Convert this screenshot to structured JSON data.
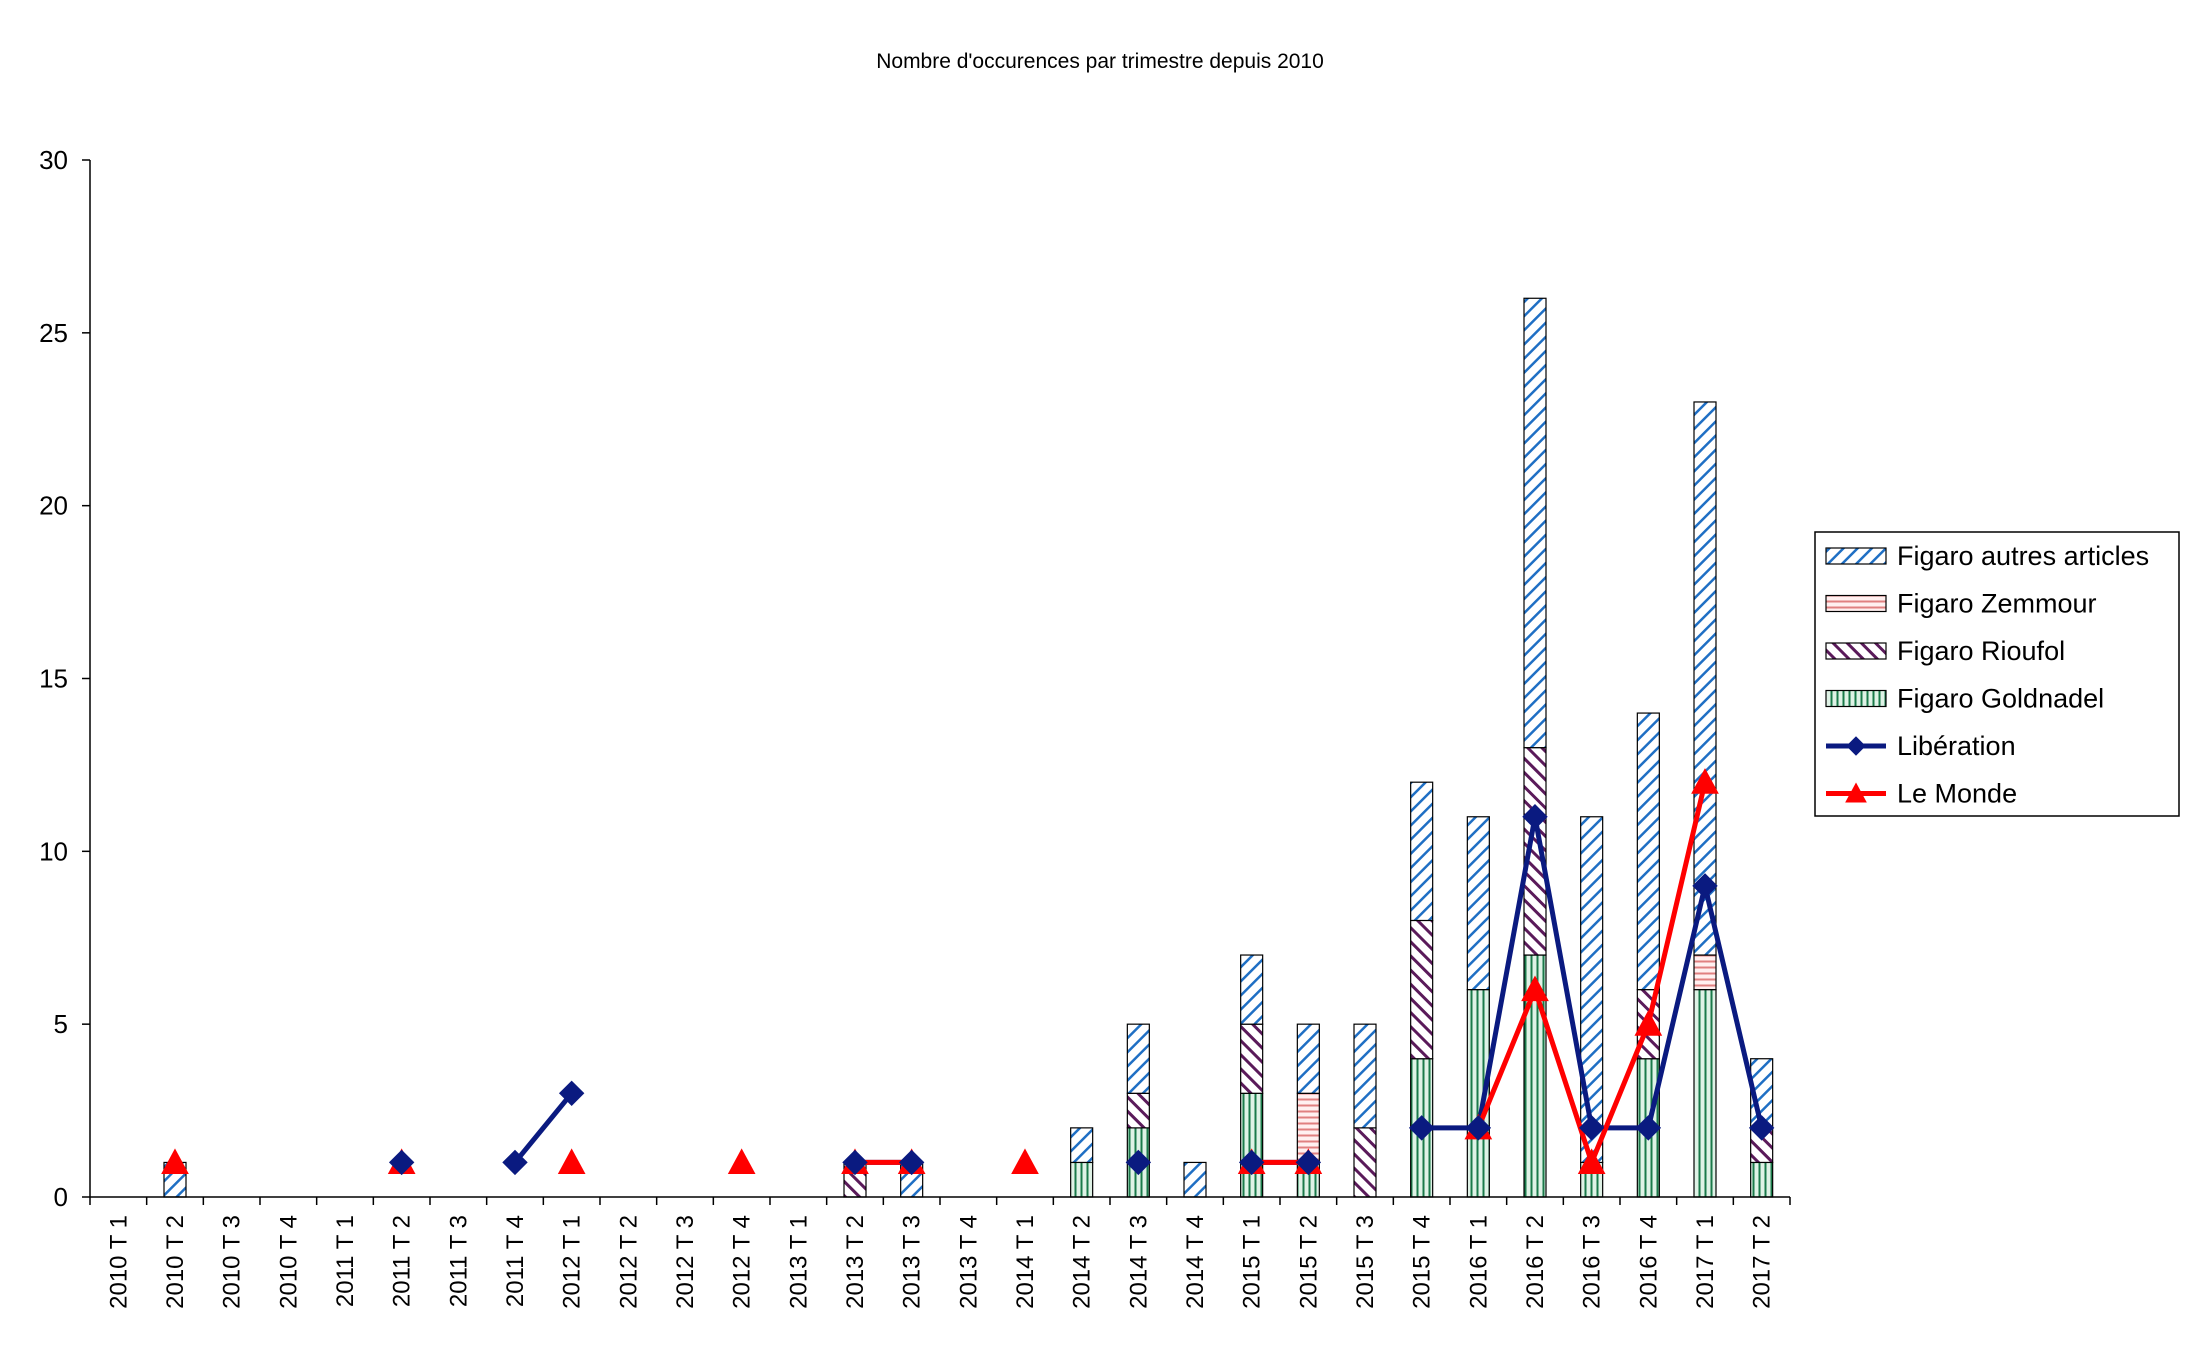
{
  "chart_data": {
    "type": "bar",
    "stacked": true,
    "title": "Nombre d'occurences par trimestre depuis 2010",
    "xlabel": "",
    "ylabel": "",
    "ylim": [
      0,
      30
    ],
    "yticks": [
      0,
      5,
      10,
      15,
      20,
      25,
      30
    ],
    "grid": false,
    "legend_position": "right",
    "categories": [
      "2010 T 1",
      "2010 T 2",
      "2010 T 3",
      "2010 T 4",
      "2011 T 1",
      "2011 T 2",
      "2011 T 3",
      "2011 T 4",
      "2012 T 1",
      "2012 T 2",
      "2012 T 3",
      "2012 T 4",
      "2013 T 1",
      "2013 T 2",
      "2013 T 3",
      "2013 T 4",
      "2014 T 1",
      "2014 T 2",
      "2014 T 3",
      "2014 T 4",
      "2015 T 1",
      "2015 T 2",
      "2015 T 3",
      "2015 T 4",
      "2016 T 1",
      "2016 T 2",
      "2016 T 3",
      "2016 T 4",
      "2017 T 1",
      "2017 T 2"
    ],
    "bar_series": [
      {
        "name": "Figaro Goldnadel",
        "pattern": "vertical",
        "color": "#1a7a4a",
        "fill": "#dff2e6",
        "values": [
          0,
          0,
          0,
          0,
          0,
          0,
          0,
          0,
          0,
          0,
          0,
          0,
          0,
          0,
          0,
          0,
          0,
          1,
          2,
          0,
          3,
          1,
          0,
          4,
          6,
          7,
          1,
          4,
          6,
          1
        ]
      },
      {
        "name": "Figaro Rioufol",
        "pattern": "backslash",
        "color": "#5a1a5a",
        "fill": "#ffffff",
        "values": [
          0,
          0,
          0,
          0,
          0,
          0,
          0,
          0,
          0,
          0,
          0,
          0,
          0,
          1,
          0,
          0,
          0,
          0,
          1,
          0,
          2,
          0,
          2,
          4,
          0,
          6,
          0,
          2,
          0,
          1
        ]
      },
      {
        "name": "Figaro Zemmour",
        "pattern": "horizontal",
        "color": "#e08080",
        "fill": "#fff0f0",
        "values": [
          0,
          0,
          0,
          0,
          0,
          0,
          0,
          0,
          0,
          0,
          0,
          0,
          0,
          0,
          0,
          0,
          0,
          0,
          0,
          0,
          0,
          2,
          0,
          0,
          0,
          0,
          0,
          0,
          1,
          0
        ]
      },
      {
        "name": "Figaro autres articles",
        "pattern": "slash",
        "color": "#1f6fc4",
        "fill": "#ffffff",
        "values": [
          0,
          1,
          0,
          0,
          0,
          0,
          0,
          0,
          0,
          0,
          0,
          0,
          0,
          0,
          1,
          0,
          0,
          1,
          2,
          1,
          2,
          2,
          3,
          4,
          5,
          13,
          10,
          8,
          16,
          2
        ]
      }
    ],
    "line_series": [
      {
        "name": "Libération",
        "color": "#0a1a80",
        "marker": "diamond",
        "values": [
          null,
          null,
          null,
          null,
          null,
          1,
          null,
          1,
          3,
          null,
          null,
          null,
          null,
          1,
          1,
          null,
          null,
          null,
          1,
          null,
          1,
          1,
          null,
          2,
          2,
          11,
          2,
          2,
          9,
          2
        ]
      },
      {
        "name": "Le Monde",
        "color": "#ff0000",
        "marker": "triangle",
        "values": [
          null,
          1,
          null,
          null,
          null,
          1,
          null,
          null,
          1,
          null,
          null,
          1,
          null,
          1,
          1,
          null,
          1,
          null,
          null,
          null,
          1,
          1,
          null,
          null,
          2,
          6,
          1,
          5,
          12,
          null
        ]
      }
    ],
    "legend_order": [
      "Figaro autres articles",
      "Figaro Zemmour",
      "Figaro Rioufol",
      "Figaro Goldnadel",
      "Libération",
      "Le Monde"
    ]
  }
}
